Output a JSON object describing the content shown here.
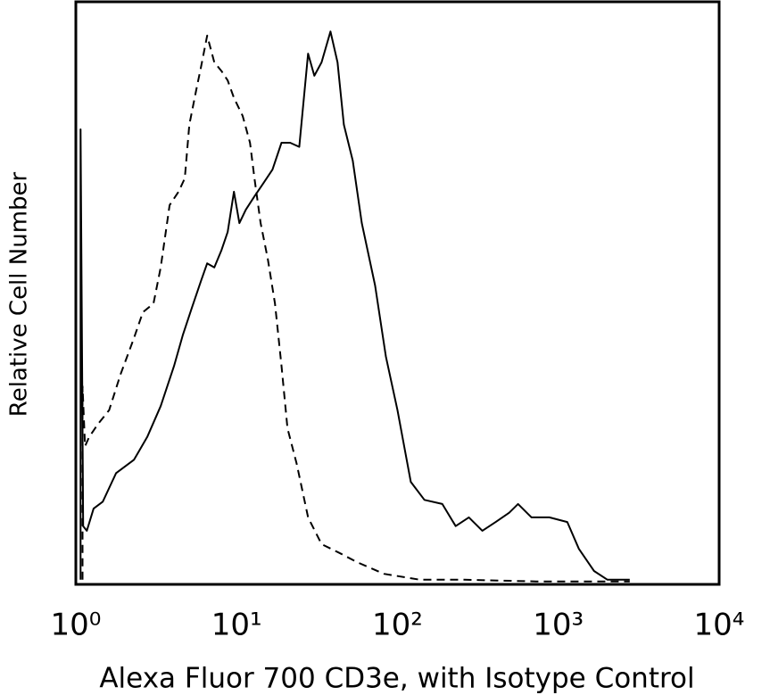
{
  "chart_data": {
    "type": "line",
    "x_label": "Alexa Fluor 700 CD3e, with Isotype Control",
    "y_label": "Relative Cell Number",
    "xscale": "log",
    "xlim": [
      1,
      10000
    ],
    "xticks": [
      {
        "value": 1,
        "label": "10⁰"
      },
      {
        "value": 10,
        "label": "10¹"
      },
      {
        "value": 100,
        "label": "10²"
      },
      {
        "value": 1000,
        "label": "10³"
      },
      {
        "value": 10000,
        "label": "10⁴"
      }
    ],
    "ylim": [
      0,
      100
    ],
    "grid": false,
    "series": [
      {
        "color": "#000000",
        "style": "solid",
        "x": [
          1.07,
          1.07,
          1.11,
          1.17,
          1.29,
          1.47,
          1.78,
          2.3,
          2.78,
          3.37,
          4.08,
          4.64,
          5.27,
          6.0,
          6.56,
          7.26,
          8.05,
          8.8,
          9.62,
          10.4,
          11.4,
          12.9,
          14.7,
          16.7,
          19.0,
          21.5,
          24.5,
          27.8,
          30.4,
          33.7,
          38.3,
          42.4,
          46.4,
          52.7,
          60.0,
          72.6,
          84.7,
          100,
          121,
          147,
          190,
          230,
          278,
          337,
          408,
          495,
          562,
          681,
          880,
          1137,
          1343,
          1668,
          2021,
          2780
        ],
        "values": [
          0.8,
          78.1,
          10.0,
          9.2,
          13.0,
          14.2,
          19.1,
          21.4,
          25.3,
          30.6,
          37.5,
          42.9,
          47.5,
          52.1,
          55.1,
          54.4,
          57.4,
          60.5,
          67.4,
          62.0,
          64.3,
          66.6,
          68.9,
          71.2,
          75.8,
          75.8,
          75.1,
          91.1,
          87.3,
          89.6,
          94.9,
          89.6,
          78.9,
          72.7,
          62.0,
          51.3,
          39.1,
          29.9,
          17.6,
          14.5,
          13.8,
          10.0,
          11.5,
          9.2,
          10.7,
          12.3,
          13.8,
          11.5,
          11.5,
          10.7,
          6.1,
          2.3,
          0.8,
          0.8
        ]
      },
      {
        "color": "#000000",
        "style": "dashed",
        "x": [
          1.1,
          1.1,
          1.14,
          1.21,
          1.38,
          1.61,
          1.9,
          2.3,
          2.61,
          3.04,
          3.37,
          3.83,
          4.35,
          4.76,
          5.08,
          5.62,
          6.0,
          6.56,
          7.26,
          8.05,
          8.8,
          9.62,
          10.9,
          12.1,
          12.9,
          14.1,
          15.6,
          17.3,
          19.0,
          20.7,
          23.6,
          27.8,
          33.7,
          43.5,
          56.2,
          82.5,
          138,
          261,
          726,
          2780
        ],
        "values": [
          0.8,
          34.0,
          23.7,
          25.3,
          27.6,
          29.9,
          36.1,
          42.3,
          46.7,
          48.2,
          54.4,
          65.1,
          67.4,
          69.7,
          78.9,
          85.0,
          88.8,
          94.2,
          89.6,
          88.1,
          86.5,
          83.5,
          80.4,
          75.8,
          69.7,
          62.0,
          55.9,
          48.2,
          37.5,
          26.8,
          20.7,
          11.5,
          6.9,
          5.4,
          3.8,
          1.8,
          0.8,
          0.8,
          0.5,
          0.5
        ]
      }
    ]
  }
}
